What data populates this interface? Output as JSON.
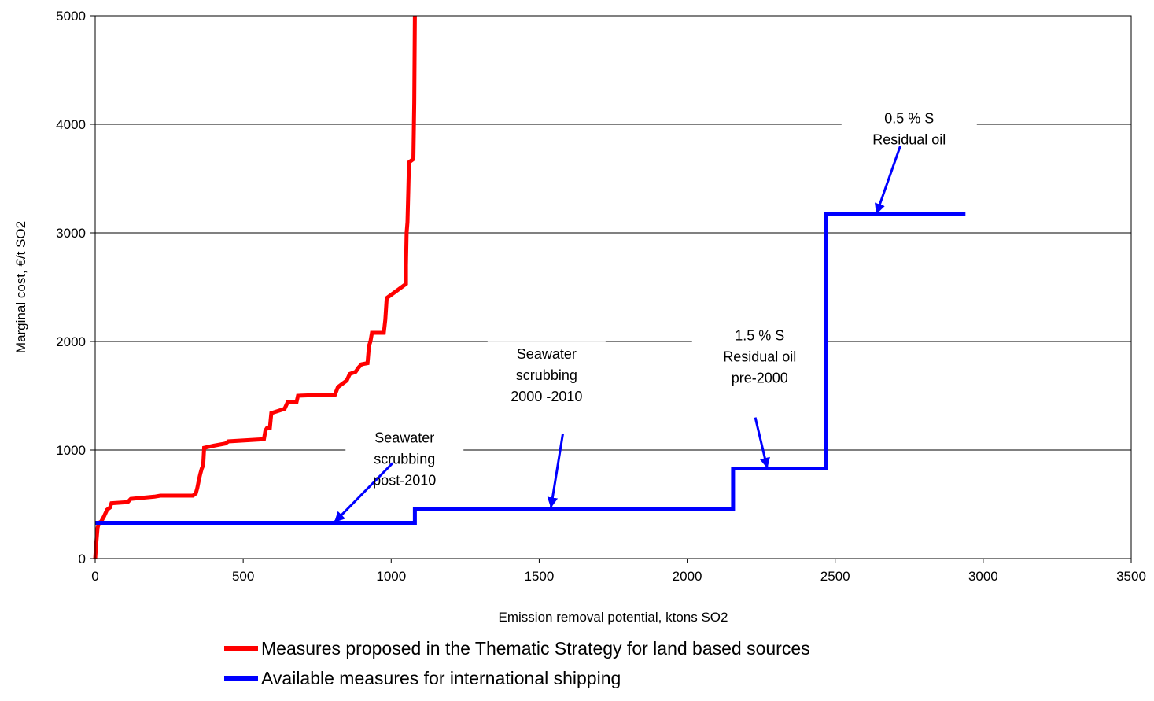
{
  "chart_data": {
    "type": "line",
    "xlabel": "Emission removal potential, ktons SO2",
    "ylabel": "Marginal cost,  €/t SO2",
    "xlim": [
      0,
      3500
    ],
    "ylim": [
      0,
      5000
    ],
    "x_ticks": [
      0,
      500,
      1000,
      1500,
      2000,
      2500,
      3000,
      3500
    ],
    "y_ticks": [
      0,
      1000,
      2000,
      3000,
      4000,
      5000
    ],
    "grid": "horizontal",
    "legend_position": "bottom",
    "series": [
      {
        "name": "Measures proposed in the Thematic Strategy for land based sources",
        "color": "#ff0000",
        "points": [
          [
            0,
            0
          ],
          [
            3,
            120
          ],
          [
            8,
            280
          ],
          [
            12,
            330
          ],
          [
            20,
            340
          ],
          [
            30,
            390
          ],
          [
            40,
            450
          ],
          [
            50,
            470
          ],
          [
            55,
            510
          ],
          [
            110,
            520
          ],
          [
            120,
            550
          ],
          [
            200,
            570
          ],
          [
            220,
            580
          ],
          [
            330,
            580
          ],
          [
            340,
            600
          ],
          [
            345,
            650
          ],
          [
            350,
            720
          ],
          [
            355,
            780
          ],
          [
            360,
            830
          ],
          [
            365,
            860
          ],
          [
            368,
            1020
          ],
          [
            400,
            1040
          ],
          [
            440,
            1060
          ],
          [
            450,
            1080
          ],
          [
            570,
            1100
          ],
          [
            575,
            1180
          ],
          [
            580,
            1200
          ],
          [
            590,
            1200
          ],
          [
            595,
            1340
          ],
          [
            630,
            1370
          ],
          [
            640,
            1380
          ],
          [
            650,
            1440
          ],
          [
            680,
            1440
          ],
          [
            685,
            1500
          ],
          [
            780,
            1510
          ],
          [
            810,
            1510
          ],
          [
            820,
            1580
          ],
          [
            840,
            1620
          ],
          [
            850,
            1640
          ],
          [
            860,
            1700
          ],
          [
            880,
            1720
          ],
          [
            890,
            1760
          ],
          [
            900,
            1790
          ],
          [
            920,
            1800
          ],
          [
            925,
            1960
          ],
          [
            930,
            2000
          ],
          [
            935,
            2080
          ],
          [
            975,
            2080
          ],
          [
            980,
            2200
          ],
          [
            985,
            2400
          ],
          [
            1000,
            2430
          ],
          [
            1050,
            2530
          ],
          [
            1050,
            2700
          ],
          [
            1052,
            3000
          ],
          [
            1055,
            3100
          ],
          [
            1058,
            3400
          ],
          [
            1060,
            3650
          ],
          [
            1075,
            3680
          ],
          [
            1078,
            4200
          ],
          [
            1080,
            5000
          ]
        ]
      },
      {
        "name": "Available measures for international shipping",
        "color": "#0000ff",
        "points": [
          [
            0,
            330
          ],
          [
            1080,
            330
          ],
          [
            1080,
            460
          ],
          [
            2155,
            460
          ],
          [
            2155,
            830
          ],
          [
            2470,
            830
          ],
          [
            2470,
            3170
          ],
          [
            2940,
            3170
          ]
        ]
      }
    ],
    "annotations": [
      {
        "lines": [
          "Seawater",
          "scrubbing",
          " post-2010"
        ],
        "anchor": [
          1045,
          1070
        ],
        "arrow_from": [
          1005,
          880
        ],
        "arrow_to": [
          810,
          340
        ]
      },
      {
        "lines": [
          "Seawater",
          "scrubbing",
          "2000 -2010"
        ],
        "anchor": [
          1525,
          1840
        ],
        "arrow_from": [
          1580,
          1150
        ],
        "arrow_to": [
          1540,
          475
        ]
      },
      {
        "lines": [
          "1.5 % S",
          "Residual oil",
          "pre-2000"
        ],
        "anchor": [
          2245,
          2010
        ],
        "arrow_from": [
          2230,
          1300
        ],
        "arrow_to": [
          2270,
          840
        ]
      },
      {
        "lines": [
          "0.5 % S",
          "Residual oil"
        ],
        "anchor": [
          2750,
          4010
        ],
        "arrow_from": [
          2720,
          3800
        ],
        "arrow_to": [
          2640,
          3180
        ]
      }
    ]
  }
}
